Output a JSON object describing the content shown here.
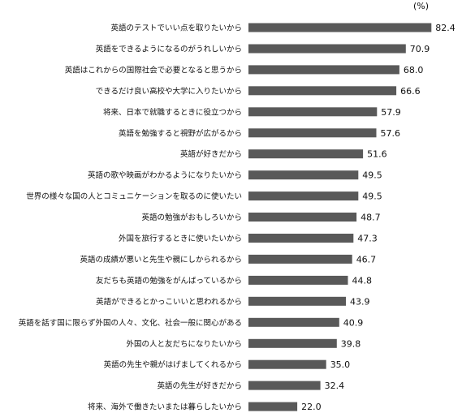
{
  "chart_data": {
    "type": "bar",
    "orientation": "horizontal",
    "unit": "(%)",
    "grid": false,
    "bar_color": "#595959",
    "xlim": [
      0,
      100
    ],
    "categories": [
      "英語のテストでいい点を取りたいから",
      "英語をできるようになるのがうれしいから",
      "英語はこれからの国際社会で必要となると思うから",
      "できるだけ良い高校や大学に入りたいから",
      "将来、日本で就職するときに役立つから",
      "英語を勉強すると視野が広がるから",
      "英語が好きだから",
      "英語の歌や映画がわかるようになりたいから",
      "世界の様々な国の人とコミュニケーションを取るのに使いたい",
      "英語の勉強がおもしろいから",
      "外国を旅行するときに使いたいから",
      "英語の成績が悪いと先生や親にしかられるから",
      "友だちも英語の勉強をがんばっているから",
      "英語ができるとかっこいいと思われるから",
      "英語を話す国に限らず外国の人々、文化、社会一般に関心がある",
      "外国の人と友だちになりたいから",
      "英語の先生や親がはげましてくれるから",
      "英語の先生が好きだから",
      "将来、海外で働きたいまたは暮らしたいから"
    ],
    "values": [
      82.4,
      70.9,
      68.0,
      66.6,
      57.9,
      57.6,
      51.6,
      49.5,
      49.5,
      48.7,
      47.3,
      46.7,
      44.8,
      43.9,
      40.9,
      39.8,
      35.0,
      32.4,
      22.0
    ],
    "value_labels": [
      "82.4",
      "70.9",
      "68.0",
      "66.6",
      "57.9",
      "57.6",
      "51.6",
      "49.5",
      "49.5",
      "48.7",
      "47.3",
      "46.7",
      "44.8",
      "43.9",
      "40.9",
      "39.8",
      "35.0",
      "32.4",
      "22.0"
    ]
  }
}
